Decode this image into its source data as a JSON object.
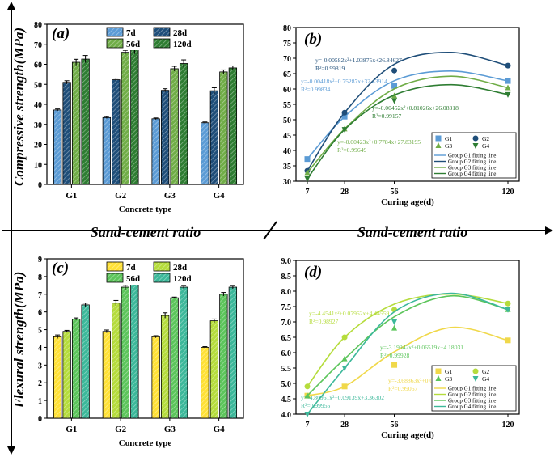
{
  "layout": {
    "ylabel_top": "Compressive strength(MPa)",
    "ylabel_bottom": "Flexural strength(MPa)",
    "divider_left": "Sand-cement ratio",
    "divider_right": "Sand-cement ratio"
  },
  "chart_data": [
    {
      "id": "a",
      "type": "bar",
      "panel_label": "(a)",
      "xlabel": "Concrete type",
      "ylabel": "",
      "categories": [
        "G1",
        "G2",
        "G3",
        "G4"
      ],
      "ylim": [
        0,
        80
      ],
      "yticks": [
        0,
        10,
        20,
        30,
        40,
        50,
        60,
        70,
        80
      ],
      "legend_position": "top-center",
      "series": [
        {
          "name": "7d",
          "values": [
            37.2,
            33.4,
            32.8,
            30.8
          ],
          "errors": [
            0.5,
            0.5,
            0.4,
            0.4
          ],
          "color": "#5b9bd5",
          "pattern": "hatch"
        },
        {
          "name": "28d",
          "values": [
            51.0,
            52.3,
            47.0,
            46.8
          ],
          "errors": [
            0.8,
            0.8,
            0.8,
            1.5
          ],
          "color": "#1f4e79",
          "pattern": "hatch"
        },
        {
          "name": "56d",
          "values": [
            61.0,
            66.0,
            57.8,
            56.2
          ],
          "errors": [
            1.5,
            1.0,
            1.2,
            1.0
          ],
          "color": "#70ad47",
          "pattern": "hatch"
        },
        {
          "name": "120d",
          "values": [
            62.6,
            67.6,
            60.4,
            58.2
          ],
          "errors": [
            1.8,
            2.4,
            1.8,
            1.0
          ],
          "color": "#2e7d32",
          "pattern": "hatch"
        }
      ]
    },
    {
      "id": "b",
      "type": "scatter",
      "panel_label": "(b)",
      "xlabel": "Curing age(d)",
      "ylabel": "",
      "x": [
        7,
        28,
        56,
        120
      ],
      "xlim": [
        7,
        120
      ],
      "ylim": [
        30,
        80
      ],
      "yticks": [
        30,
        35,
        40,
        45,
        50,
        55,
        60,
        65,
        70,
        75,
        80
      ],
      "legend_position": "bottom-right",
      "series": [
        {
          "name": "G1",
          "fit_name": "Group G1 fitting line",
          "values": [
            37.2,
            51.0,
            61.0,
            62.6
          ],
          "marker": "square",
          "color": "#5b9bd5",
          "fit": [
            -0.00418,
            0.75287,
            32.43914
          ],
          "equation": "y=-0.00418x²+0.75287x+32.43914",
          "r2": "R²=0.99834"
        },
        {
          "name": "G2",
          "fit_name": "Group G2 fitting line",
          "values": [
            33.4,
            52.3,
            66.0,
            67.6
          ],
          "marker": "circle",
          "color": "#1f4e79",
          "fit": [
            -0.00582,
            1.03875,
            26.84627
          ],
          "equation": "y=-0.00582x²+1.03875x+26.84627",
          "r2": "R²=0.99819"
        },
        {
          "name": "G3",
          "fit_name": "Group G3 fitting line",
          "values": [
            32.8,
            47.0,
            57.8,
            60.4
          ],
          "marker": "triangle-up",
          "color": "#70ad47",
          "fit": [
            -0.00423,
            0.7784,
            27.83195
          ],
          "equation": "y=-0.00423x²+0.7784x+27.83195",
          "r2": "R²=0.99649"
        },
        {
          "name": "G4",
          "fit_name": "Group G4 fitting line",
          "values": [
            30.8,
            46.8,
            56.2,
            58.2
          ],
          "marker": "triangle-down",
          "color": "#2e7d32",
          "fit": [
            -0.00452,
            0.81026,
            26.08318
          ],
          "equation": "y=-0.00452x²+0.81026x+26.08318",
          "r2": "R²=0.99157"
        }
      ]
    },
    {
      "id": "c",
      "type": "bar",
      "panel_label": "(c)",
      "xlabel": "Concrete type",
      "ylabel": "",
      "categories": [
        "G1",
        "G2",
        "G3",
        "G4"
      ],
      "ylim": [
        0,
        9
      ],
      "yticks": [
        0,
        1,
        2,
        3,
        4,
        5,
        6,
        7,
        8,
        9
      ],
      "legend_position": "top-center",
      "series": [
        {
          "name": "7d",
          "values": [
            4.6,
            4.9,
            4.6,
            4.0
          ],
          "errors": [
            0.1,
            0.08,
            0.06,
            0.04
          ],
          "color": "#ffe135",
          "pattern": "hatch"
        },
        {
          "name": "28d",
          "values": [
            4.9,
            6.5,
            5.8,
            5.5
          ],
          "errors": [
            0.06,
            0.15,
            0.15,
            0.1
          ],
          "color": "#b5dc3c",
          "pattern": "hatch"
        },
        {
          "name": "56d",
          "values": [
            5.6,
            7.4,
            6.8,
            7.0
          ],
          "errors": [
            0.06,
            0.15,
            0.04,
            0.1
          ],
          "color": "#5cc55b",
          "pattern": "hatch"
        },
        {
          "name": "120d",
          "values": [
            6.4,
            7.6,
            7.4,
            7.4
          ],
          "errors": [
            0.1,
            0.05,
            0.1,
            0.1
          ],
          "color": "#3cb89a",
          "pattern": "hatch"
        }
      ]
    },
    {
      "id": "d",
      "type": "scatter",
      "panel_label": "(d)",
      "xlabel": "Curing age(d)",
      "ylabel": "",
      "x": [
        7,
        28,
        56,
        120
      ],
      "xlim": [
        7,
        120
      ],
      "ylim": [
        4.0,
        9.0
      ],
      "yticks": [
        4.0,
        4.5,
        5.0,
        5.5,
        6.0,
        6.5,
        7.0,
        7.5,
        8.0,
        8.5,
        9.0
      ],
      "legend_position": "bottom-right",
      "series": [
        {
          "name": "G1",
          "fit_name": "Group G1 fitting line",
          "values": [
            4.6,
            4.9,
            5.6,
            6.4
          ],
          "marker": "square",
          "color": "#f0d84a",
          "fit": [
            -3.68863,
            0.02367,
            4.38786
          ],
          "equation": "y=-3.68863x²+0.02367x+4.38786",
          "r2": "R²=0.99067"
        },
        {
          "name": "G2",
          "fit_name": "Group G2 fitting line",
          "values": [
            4.9,
            6.5,
            7.4,
            7.6
          ],
          "marker": "circle",
          "color": "#b5dc3c",
          "fit": [
            -4.4541,
            0.07962,
            4.44559
          ],
          "equation": "y=-4.4541x²+0.07962x+4.44559",
          "r2": "R²=0.98927"
        },
        {
          "name": "G3",
          "fit_name": "Group G3 fitting line",
          "values": [
            4.6,
            5.8,
            6.8,
            7.4
          ],
          "marker": "triangle-up",
          "color": "#5cc55b",
          "fit": [
            -3.19942,
            0.06519,
            4.18031
          ],
          "equation": "y=-3.19942x²+0.06519x+4.18031",
          "r2": "R²=0.99928"
        },
        {
          "name": "G4",
          "fit_name": "Group G4 fitting line",
          "values": [
            4.0,
            5.5,
            7.0,
            7.4
          ],
          "marker": "triangle-down",
          "color": "#3cb89a",
          "fit": [
            -4.80961,
            0.09139,
            3.36302
          ],
          "equation": "y=-4.80961x²+0.09139x+3.36302",
          "r2": "R²=0.99955"
        }
      ]
    }
  ]
}
